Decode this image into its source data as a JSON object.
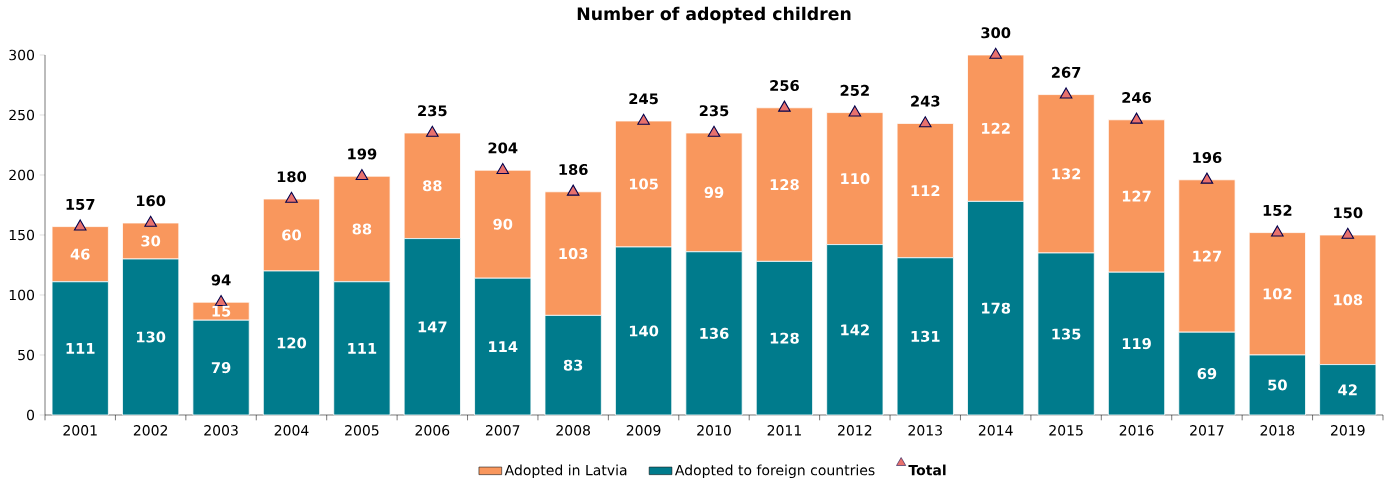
{
  "chart_data": {
    "type": "bar",
    "title": "Number of adopted children",
    "stacked": true,
    "categories": [
      "2001",
      "2002",
      "2003",
      "2004",
      "2005",
      "2006",
      "2007",
      "2008",
      "2009",
      "2010",
      "2011",
      "2012",
      "2013",
      "2014",
      "2015",
      "2016",
      "2017",
      "2018",
      "2019"
    ],
    "series": [
      {
        "name": "Adopted to foreign countries",
        "color": "#007b8c",
        "values": [
          111,
          130,
          79,
          120,
          111,
          147,
          114,
          83,
          140,
          136,
          128,
          142,
          131,
          178,
          135,
          119,
          69,
          50,
          42
        ]
      },
      {
        "name": "Adopted in Latvia",
        "color": "#f9975d",
        "values": [
          46,
          30,
          15,
          60,
          88,
          88,
          90,
          103,
          105,
          99,
          128,
          110,
          112,
          122,
          132,
          127,
          127,
          102,
          108
        ]
      },
      {
        "name": "Total",
        "type": "scatter",
        "marker": "triangle",
        "color": "#e8716d",
        "values": [
          157,
          160,
          94,
          180,
          199,
          235,
          204,
          186,
          245,
          235,
          256,
          252,
          243,
          300,
          267,
          246,
          196,
          152,
          150
        ]
      }
    ],
    "ylim": [
      0,
      300
    ],
    "yticks": [
      0,
      50,
      100,
      150,
      200,
      250,
      300
    ],
    "data_labels": true,
    "legend": "bottom"
  }
}
